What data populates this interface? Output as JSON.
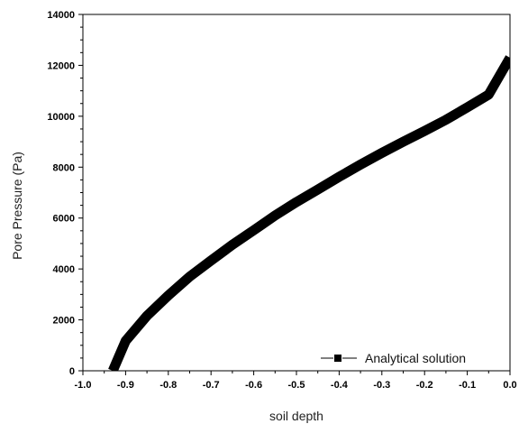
{
  "chart_data": {
    "type": "line",
    "xlabel": "soil depth",
    "ylabel": "Pore Pressure (Pa)",
    "xlim": [
      -1.0,
      0.0
    ],
    "ylim": [
      0,
      14000
    ],
    "x_ticks": [
      "-1.0",
      "-0.9",
      "-0.8",
      "-0.7",
      "-0.6",
      "-0.5",
      "-0.4",
      "-0.3",
      "-0.2",
      "-0.1",
      "0.0"
    ],
    "y_ticks": [
      "0",
      "2000",
      "4000",
      "6000",
      "8000",
      "10000",
      "12000",
      "14000"
    ],
    "grid": false,
    "legend_position": "bottom-right",
    "series": [
      {
        "name": "Analytical solution",
        "color": "#000000",
        "marker": "square",
        "x": [
          -0.93,
          -0.9,
          -0.85,
          -0.8,
          -0.75,
          -0.7,
          -0.65,
          -0.6,
          -0.55,
          -0.5,
          -0.45,
          -0.4,
          -0.35,
          -0.3,
          -0.25,
          -0.2,
          -0.15,
          -0.1,
          -0.05,
          0.0
        ],
        "y": [
          0,
          1170,
          2160,
          2960,
          3700,
          4330,
          4950,
          5520,
          6100,
          6630,
          7120,
          7620,
          8100,
          8560,
          9000,
          9420,
          9860,
          10350,
          10850,
          12300
        ]
      }
    ]
  }
}
